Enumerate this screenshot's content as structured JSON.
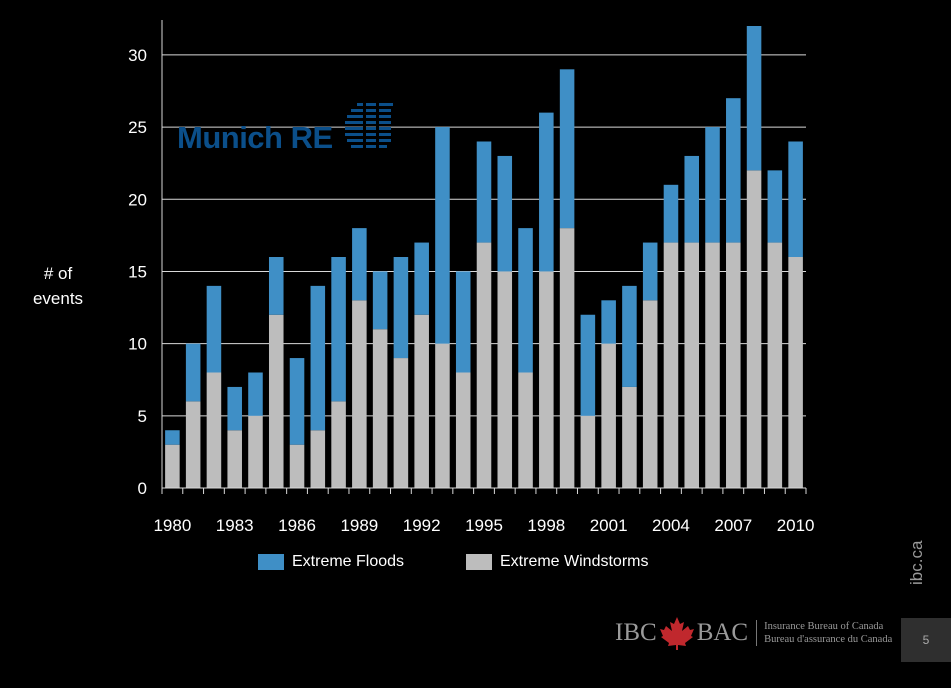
{
  "chart_data": {
    "type": "bar",
    "stacked": true,
    "categories": [
      "1980",
      "1981",
      "1982",
      "1983",
      "1984",
      "1985",
      "1986",
      "1987",
      "1988",
      "1989",
      "1990",
      "1991",
      "1992",
      "1993",
      "1994",
      "1995",
      "1996",
      "1997",
      "1998",
      "1999",
      "2000",
      "2001",
      "2002",
      "2003",
      "2004",
      "2005",
      "2006",
      "2007",
      "2008",
      "2009",
      "2010"
    ],
    "xtick_labels": [
      "1980",
      "1983",
      "1986",
      "1989",
      "1992",
      "1995",
      "1998",
      "2001",
      "2004",
      "2007",
      "2010"
    ],
    "series": [
      {
        "name": "Extreme Windstorms",
        "color": "#bdbdbd",
        "values": [
          3,
          6,
          8,
          4,
          5,
          12,
          3,
          4,
          6,
          13,
          11,
          9,
          12,
          10,
          8,
          17,
          15,
          8,
          15,
          18,
          5,
          10,
          7,
          13,
          17,
          17,
          17,
          17,
          22,
          17,
          16
        ]
      },
      {
        "name": "Extreme Floods",
        "color": "#3f8fc6",
        "values": [
          1,
          4,
          6,
          3,
          3,
          4,
          6,
          10,
          10,
          5,
          4,
          7,
          5,
          15,
          7,
          7,
          8,
          10,
          11,
          11,
          7,
          3,
          7,
          4,
          4,
          6,
          8,
          10,
          10,
          5,
          8
        ]
      }
    ],
    "ylabel": "# of events",
    "ylim": [
      0,
      32
    ],
    "yticks": [
      0,
      5,
      10,
      15,
      20,
      25,
      30
    ],
    "grid": true,
    "legend_position": "bottom"
  },
  "logo": {
    "text": "Munich RE",
    "color": "#0b4f8a"
  },
  "side_text": "ibc.ca",
  "footer": {
    "brand_left": "IBC",
    "brand_right": "BAC",
    "line1": "Insurance Bureau of Canada",
    "line2": "Bureau d'assurance du Canada",
    "page_number": "5"
  }
}
